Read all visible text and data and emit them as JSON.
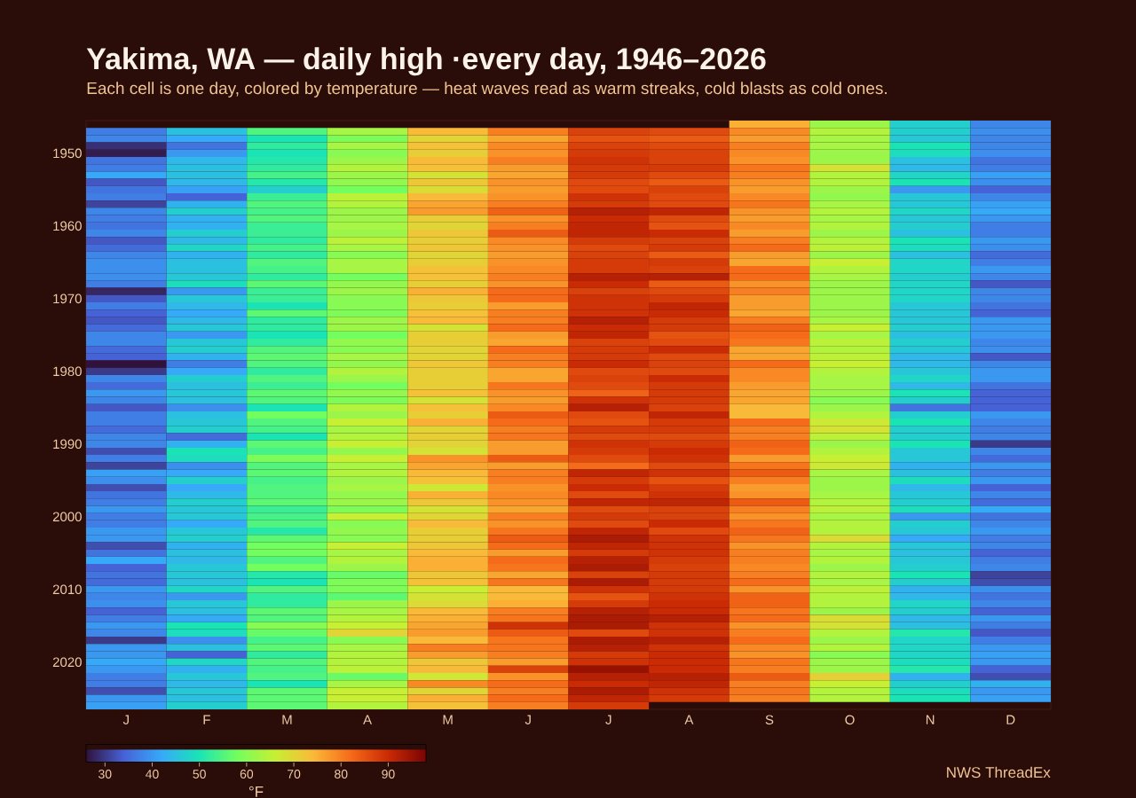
{
  "chart_data": {
    "type": "heatmap",
    "title": "Yakima, WA — daily high ·every day, 1946–2026",
    "subtitle": "Each cell is one day, colored by temperature — heat waves read as warm streaks, cold blasts as cold ones.",
    "categories": [
      "J",
      "F",
      "M",
      "A",
      "M",
      "J",
      "J",
      "A",
      "S",
      "O",
      "N",
      "D"
    ],
    "y_categories": [
      null,
      null,
      null,
      null,
      "1950",
      null,
      null,
      null,
      null,
      null,
      null,
      null,
      null,
      null,
      "1960",
      null,
      null,
      null,
      null,
      null,
      null,
      null,
      null,
      null,
      "1970",
      null,
      null,
      null,
      null,
      null,
      null,
      null,
      null,
      null,
      "1980",
      null,
      null,
      null,
      null,
      null,
      null,
      null,
      null,
      null,
      "1990",
      null,
      null,
      null,
      null,
      null,
      null,
      null,
      null,
      null,
      "2000",
      null,
      null,
      null,
      null,
      null,
      null,
      null,
      null,
      null,
      "2010",
      null,
      null,
      null,
      null,
      null,
      null,
      null,
      null,
      null,
      "2020",
      null,
      null,
      null,
      null,
      null,
      null
    ],
    "cells": [
      [
        null,
        null,
        null,
        null,
        null,
        null,
        null,
        null,
        75,
        62,
        47,
        38
      ],
      [
        37,
        45,
        55,
        63,
        74,
        80,
        87,
        86,
        79,
        64,
        47,
        39
      ],
      [
        38,
        42,
        50,
        59,
        70,
        76,
        85,
        84,
        77,
        63,
        46,
        38
      ],
      [
        29,
        36,
        52,
        63,
        73,
        79,
        87,
        86,
        80,
        63,
        50,
        38
      ],
      [
        27,
        40,
        50,
        60,
        71,
        78,
        88,
        87,
        79,
        62,
        49,
        39
      ],
      [
        36,
        44,
        51,
        62,
        74,
        80,
        89,
        87,
        78,
        62,
        45,
        36
      ],
      [
        37,
        45,
        52,
        64,
        73,
        77,
        88,
        88,
        81,
        68,
        44,
        37
      ],
      [
        42,
        45,
        54,
        62,
        68,
        76,
        88,
        86,
        80,
        64,
        48,
        41
      ],
      [
        33,
        44,
        51,
        61,
        72,
        78,
        86,
        84,
        78,
        64,
        50,
        39
      ],
      [
        36,
        41,
        47,
        58,
        69,
        77,
        86,
        87,
        77,
        62,
        40,
        34
      ],
      [
        37,
        34,
        53,
        65,
        74,
        78,
        89,
        86,
        79,
        61,
        46,
        38
      ],
      [
        31,
        43,
        55,
        64,
        76,
        80,
        88,
        86,
        81,
        63,
        46,
        41
      ],
      [
        38,
        47,
        54,
        62,
        77,
        83,
        92,
        91,
        78,
        64,
        48,
        42
      ],
      [
        37,
        43,
        55,
        62,
        71,
        78,
        90,
        86,
        77,
        63,
        46,
        40
      ],
      [
        36,
        43,
        53,
        63,
        70,
        80,
        91,
        85,
        79,
        64,
        47,
        37
      ],
      [
        38,
        47,
        53,
        62,
        72,
        84,
        91,
        90,
        77,
        62,
        45,
        37
      ],
      [
        33,
        44,
        52,
        65,
        71,
        79,
        88,
        87,
        80,
        64,
        50,
        40
      ],
      [
        35,
        48,
        54,
        63,
        72,
        78,
        86,
        88,
        82,
        65,
        49,
        39
      ],
      [
        38,
        43,
        52,
        60,
        70,
        77,
        87,
        84,
        77,
        62,
        45,
        35
      ],
      [
        39,
        45,
        55,
        63,
        71,
        78,
        88,
        88,
        76,
        66,
        48,
        37
      ],
      [
        39,
        45,
        54,
        63,
        73,
        79,
        88,
        87,
        82,
        64,
        48,
        40
      ],
      [
        39,
        46,
        52,
        58,
        73,
        80,
        92,
        92,
        82,
        63,
        47,
        38
      ],
      [
        37,
        49,
        56,
        61,
        71,
        78,
        90,
        84,
        78,
        62,
        48,
        33
      ],
      [
        28,
        40,
        53,
        62,
        75,
        82,
        87,
        86,
        80,
        62,
        48,
        38
      ],
      [
        33,
        46,
        53,
        60,
        72,
        82,
        89,
        88,
        77,
        62,
        48,
        38
      ],
      [
        37,
        44,
        50,
        60,
        71,
        77,
        89,
        91,
        77,
        62,
        46,
        36
      ],
      [
        34,
        42,
        56,
        59,
        73,
        80,
        89,
        90,
        76,
        62,
        46,
        34
      ],
      [
        33,
        44,
        52,
        62,
        74,
        80,
        92,
        88,
        80,
        63,
        46,
        40
      ],
      [
        35,
        46,
        52,
        62,
        68,
        82,
        90,
        88,
        83,
        66,
        47,
        40
      ],
      [
        38,
        40,
        50,
        58,
        71,
        77,
        91,
        85,
        82,
        63,
        45,
        40
      ],
      [
        38,
        46,
        52,
        61,
        71,
        76,
        87,
        86,
        81,
        65,
        47,
        38
      ],
      [
        35,
        47,
        55,
        60,
        70,
        82,
        88,
        90,
        76,
        64,
        46,
        39
      ],
      [
        34,
        43,
        56,
        63,
        70,
        80,
        88,
        86,
        76,
        65,
        44,
        33
      ],
      [
        26,
        37,
        55,
        61,
        72,
        80,
        90,
        87,
        82,
        66,
        44,
        38
      ],
      [
        30,
        42,
        52,
        64,
        71,
        76,
        86,
        86,
        79,
        64,
        46,
        40
      ],
      [
        38,
        47,
        55,
        62,
        71,
        76,
        87,
        90,
        79,
        63,
        48,
        40
      ],
      [
        35,
        45,
        53,
        58,
        71,
        81,
        86,
        88,
        77,
        63,
        44,
        36
      ],
      [
        40,
        46,
        56,
        61,
        73,
        78,
        83,
        88,
        76,
        62,
        50,
        34
      ],
      [
        38,
        45,
        55,
        59,
        68,
        77,
        89,
        88,
        76,
        60,
        47,
        34
      ],
      [
        33,
        39,
        50,
        64,
        73,
        79,
        92,
        87,
        74,
        62,
        36,
        34
      ],
      [
        37,
        45,
        58,
        62,
        71,
        84,
        86,
        91,
        74,
        64,
        47,
        40
      ],
      [
        37,
        46,
        55,
        66,
        75,
        82,
        85,
        88,
        82,
        67,
        50,
        38
      ],
      [
        35,
        47,
        54,
        63,
        70,
        80,
        88,
        88,
        80,
        68,
        47,
        37
      ],
      [
        38,
        35,
        50,
        64,
        71,
        81,
        86,
        86,
        80,
        65,
        47,
        38
      ],
      [
        38,
        43,
        56,
        66,
        70,
        77,
        89,
        88,
        83,
        62,
        50,
        30
      ],
      [
        32,
        50,
        54,
        61,
        68,
        77,
        88,
        90,
        82,
        64,
        46,
        38
      ],
      [
        37,
        49,
        59,
        66,
        78,
        84,
        86,
        89,
        77,
        66,
        46,
        35
      ],
      [
        31,
        39,
        55,
        63,
        76,
        77,
        82,
        86,
        81,
        67,
        43,
        40
      ],
      [
        41,
        42,
        56,
        64,
        74,
        80,
        91,
        89,
        84,
        63,
        45,
        37
      ],
      [
        39,
        47,
        54,
        62,
        73,
        80,
        88,
        85,
        80,
        62,
        49,
        40
      ],
      [
        32,
        42,
        55,
        63,
        67,
        78,
        90,
        88,
        77,
        62,
        44,
        34
      ],
      [
        36,
        44,
        55,
        61,
        75,
        79,
        86,
        89,
        78,
        63,
        46,
        38
      ],
      [
        37,
        47,
        56,
        62,
        72,
        78,
        91,
        91,
        84,
        64,
        47,
        35
      ],
      [
        40,
        46,
        53,
        59,
        68,
        76,
        86,
        87,
        80,
        65,
        49,
        42
      ],
      [
        37,
        46,
        54,
        66,
        70,
        80,
        88,
        87,
        78,
        63,
        40,
        36
      ],
      [
        37,
        42,
        55,
        60,
        74,
        78,
        86,
        90,
        81,
        64,
        47,
        38
      ],
      [
        40,
        46,
        51,
        61,
        71,
        81,
        91,
        86,
        83,
        64,
        46,
        40
      ],
      [
        40,
        47,
        56,
        60,
        71,
        84,
        93,
        89,
        81,
        69,
        42,
        37
      ],
      [
        32,
        43,
        58,
        66,
        72,
        82,
        91,
        89,
        78,
        64,
        46,
        38
      ],
      [
        36,
        45,
        58,
        63,
        74,
        77,
        88,
        89,
        80,
        63,
        45,
        34
      ],
      [
        42,
        44,
        55,
        64,
        75,
        82,
        92,
        88,
        80,
        64,
        46,
        37
      ],
      [
        34,
        46,
        58,
        62,
        75,
        81,
        93,
        87,
        79,
        62,
        47,
        38
      ],
      [
        36,
        46,
        51,
        57,
        72,
        76,
        87,
        88,
        80,
        64,
        50,
        31
      ],
      [
        35,
        45,
        50,
        59,
        73,
        81,
        93,
        88,
        82,
        63,
        47,
        32
      ],
      [
        40,
        48,
        55,
        59,
        66,
        74,
        89,
        88,
        78,
        65,
        43,
        39
      ],
      [
        38,
        40,
        52,
        56,
        68,
        74,
        85,
        89,
        83,
        64,
        44,
        36
      ],
      [
        39,
        46,
        52,
        62,
        69,
        75,
        88,
        90,
        83,
        64,
        48,
        38
      ],
      [
        34,
        45,
        56,
        63,
        74,
        80,
        92,
        90,
        81,
        62,
        47,
        34
      ],
      [
        37,
        42,
        55,
        64,
        75,
        81,
        93,
        92,
        82,
        69,
        44,
        40
      ],
      [
        40,
        50,
        60,
        66,
        76,
        89,
        93,
        89,
        78,
        68,
        45,
        37
      ],
      [
        38,
        49,
        57,
        70,
        77,
        84,
        86,
        89,
        80,
        64,
        51,
        33
      ],
      [
        30,
        39,
        54,
        60,
        74,
        81,
        93,
        92,
        82,
        62,
        48,
        37
      ],
      [
        40,
        45,
        56,
        63,
        80,
        81,
        92,
        89,
        79,
        64,
        48,
        40
      ],
      [
        40,
        34,
        52,
        64,
        77,
        80,
        88,
        90,
        78,
        60,
        48,
        41
      ],
      [
        42,
        48,
        55,
        64,
        72,
        77,
        89,
        90,
        81,
        62,
        49,
        40
      ],
      [
        40,
        43,
        54,
        65,
        74,
        87,
        95,
        90,
        80,
        62,
        51,
        34
      ],
      [
        37,
        46,
        55,
        57,
        67,
        78,
        92,
        92,
        84,
        71,
        43,
        32
      ],
      [
        37,
        44,
        50,
        63,
        79,
        82,
        90,
        91,
        80,
        66,
        47,
        43
      ],
      [
        32,
        46,
        56,
        66,
        70,
        80,
        93,
        89,
        81,
        64,
        49,
        40
      ],
      [
        40,
        45,
        56,
        66,
        75,
        82,
        91,
        88,
        80,
        64,
        50,
        41
      ],
      [
        41,
        47,
        56,
        64,
        73,
        80,
        88,
        null,
        null,
        null,
        null,
        null
      ]
    ],
    "clim": [
      26,
      98
    ],
    "cticks": [
      30,
      40,
      50,
      60,
      70,
      80,
      90
    ],
    "clabel": "°F",
    "annotations": [
      "NWS ThreadEx"
    ]
  }
}
